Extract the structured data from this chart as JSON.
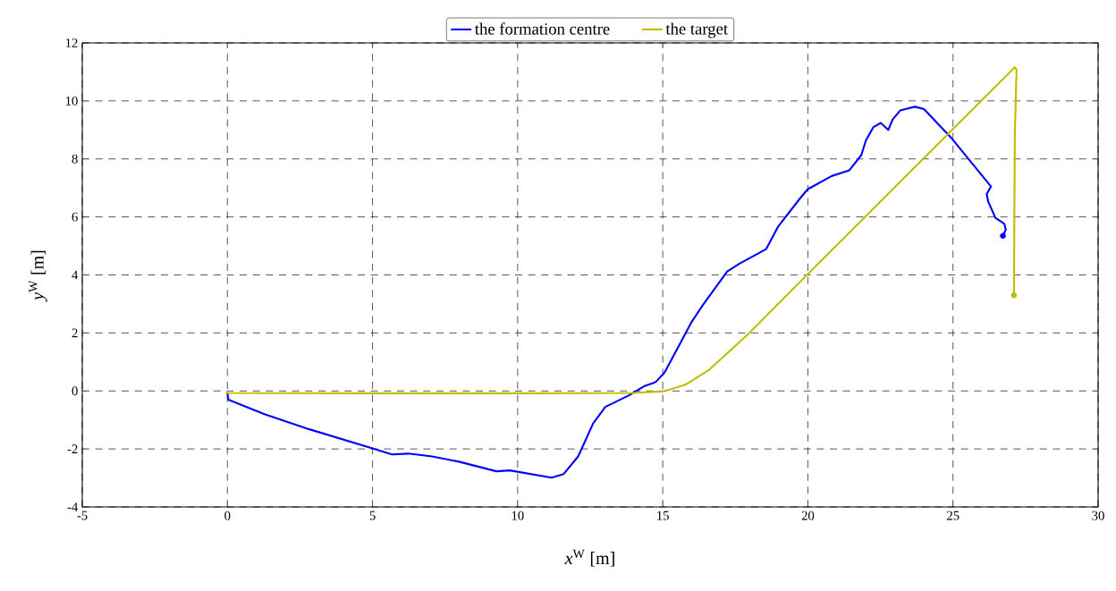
{
  "chart_data": {
    "type": "line",
    "xlabel": "*x*$^{W}$ [m]",
    "ylabel": "*y*$^{W}$ [m]",
    "xlim": [
      -5,
      30
    ],
    "ylim": [
      -4,
      12
    ],
    "xticks": [
      -5,
      0,
      5,
      10,
      15,
      20,
      25,
      30
    ],
    "yticks": [
      -4,
      -2,
      0,
      2,
      4,
      6,
      8,
      10,
      12
    ],
    "grid": true,
    "legend": "top",
    "line_style": "solid",
    "series": [
      {
        "name": "the formation centre",
        "color": "#0000ff",
        "x": [
          0,
          0.03,
          1.3,
          2.85,
          5.0,
          5.67,
          6.24,
          7.05,
          7.98,
          9.27,
          9.73,
          11.17,
          11.58,
          12.09,
          12.6,
          13.02,
          13.84,
          14.35,
          14.66,
          14.77,
          15.06,
          15.99,
          16.4,
          17.22,
          17.63,
          18.56,
          18.97,
          19.69,
          19.99,
          20.82,
          21.43,
          21.84,
          22.0,
          22.26,
          22.51,
          22.77,
          22.92,
          23.18,
          23.69,
          24.0,
          24.92,
          26.31,
          26.16,
          26.21,
          26.46,
          26.77,
          26.82,
          26.72
        ],
        "values": [
          -0.05,
          -0.3,
          -0.81,
          -1.33,
          -1.98,
          -2.19,
          -2.16,
          -2.26,
          -2.44,
          -2.77,
          -2.74,
          -2.99,
          -2.87,
          -2.25,
          -1.12,
          -0.55,
          -0.15,
          0.16,
          0.27,
          0.32,
          0.63,
          2.37,
          2.99,
          4.12,
          4.38,
          4.89,
          5.66,
          6.59,
          6.95,
          7.41,
          7.61,
          8.13,
          8.64,
          9.1,
          9.24,
          9.0,
          9.36,
          9.67,
          9.8,
          9.72,
          8.75,
          7.05,
          6.79,
          6.54,
          5.97,
          5.76,
          5.56,
          5.35
        ]
      },
      {
        "name": "the target",
        "color": "#bfbf00",
        "x": [
          -0.05,
          0,
          5,
          10,
          14,
          15.06,
          15.79,
          16.6,
          17.94,
          19.99,
          27.13,
          27.19,
          27.13,
          27.1
        ],
        "values": [
          -0.05,
          -0.07,
          -0.08,
          -0.08,
          -0.07,
          -0.01,
          0.22,
          0.73,
          1.96,
          4.02,
          11.16,
          11.07,
          8.85,
          3.3
        ]
      },
      {
        "type": "scatter",
        "color": "#0000ff",
        "x": [
          26.72
        ],
        "values": [
          5.35
        ]
      },
      {
        "type": "scatter",
        "color": "#bfbf00",
        "x": [
          27.1
        ],
        "values": [
          3.3
        ]
      }
    ]
  }
}
